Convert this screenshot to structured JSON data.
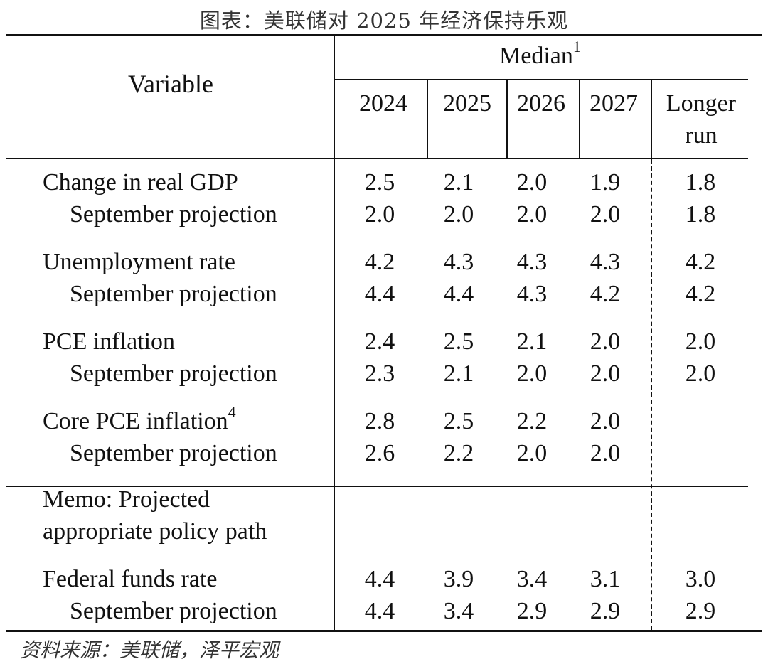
{
  "title": "图表：美联储对 2025 年经济保持乐观",
  "source": "资料来源：美联储，泽平宏观",
  "table": {
    "variable_header": "Variable",
    "median_header": "Median",
    "median_sup": "1",
    "year_headers": [
      "2024",
      "2025",
      "2026",
      "2027"
    ],
    "longer_run_line1": "Longer",
    "longer_run_line2": "run",
    "rows": [
      {
        "label": "Change in real GDP",
        "sup": "",
        "values": [
          "2.5",
          "2.1",
          "2.0",
          "1.9",
          "1.8"
        ]
      },
      {
        "label": "September projection",
        "sup": "",
        "values": [
          "2.0",
          "2.0",
          "2.0",
          "2.0",
          "1.8"
        ]
      },
      {
        "label": "Unemployment rate",
        "sup": "",
        "values": [
          "4.2",
          "4.3",
          "4.3",
          "4.3",
          "4.2"
        ]
      },
      {
        "label": "September projection",
        "sup": "",
        "values": [
          "4.4",
          "4.4",
          "4.3",
          "4.2",
          "4.2"
        ]
      },
      {
        "label": "PCE inflation",
        "sup": "",
        "values": [
          "2.4",
          "2.5",
          "2.1",
          "2.0",
          "2.0"
        ]
      },
      {
        "label": "September projection",
        "sup": "",
        "values": [
          "2.3",
          "2.1",
          "2.0",
          "2.0",
          "2.0"
        ]
      },
      {
        "label": "Core PCE inflation",
        "sup": "4",
        "values": [
          "2.8",
          "2.5",
          "2.2",
          "2.0",
          ""
        ]
      },
      {
        "label": "September projection",
        "sup": "",
        "values": [
          "2.6",
          "2.2",
          "2.0",
          "2.0",
          ""
        ]
      }
    ],
    "memo_line1": "Memo: Projected",
    "memo_line2": "appropriate policy path",
    "memo_rows": [
      {
        "label": "Federal funds rate",
        "values": [
          "4.4",
          "3.9",
          "3.4",
          "3.1",
          "3.0"
        ]
      },
      {
        "label": "September projection",
        "values": [
          "4.4",
          "3.4",
          "2.9",
          "2.9",
          "2.9"
        ]
      }
    ]
  }
}
